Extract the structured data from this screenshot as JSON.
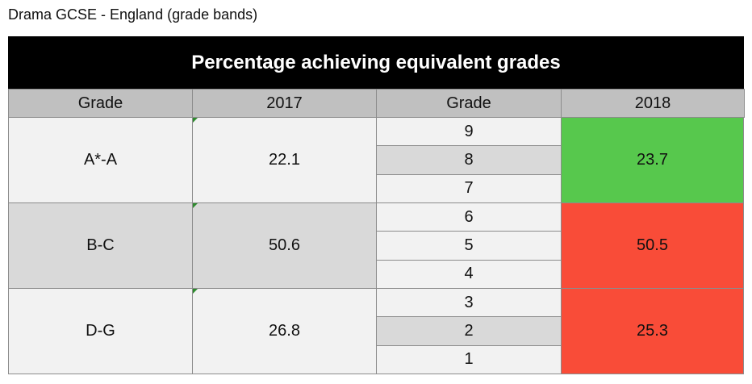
{
  "title": "Drama GCSE - England (grade bands)",
  "table": {
    "heading": "Percentage achieving equivalent grades",
    "columns": [
      "Grade",
      "2017",
      "Grade",
      "2018"
    ],
    "rows": [
      {
        "band": "A*-A",
        "old_value": 22.1,
        "grades": [
          9,
          8,
          7
        ],
        "new_value": 23.7,
        "new_color": "#57c84d"
      },
      {
        "band": "B-C",
        "old_value": 50.6,
        "grades": [
          6,
          5,
          4
        ],
        "new_value": 50.5,
        "new_color": "#f94c38"
      },
      {
        "band": "D-G",
        "old_value": 26.8,
        "grades": [
          3,
          2,
          1
        ],
        "new_value": 25.3,
        "new_color": "#f94c38"
      }
    ]
  }
}
